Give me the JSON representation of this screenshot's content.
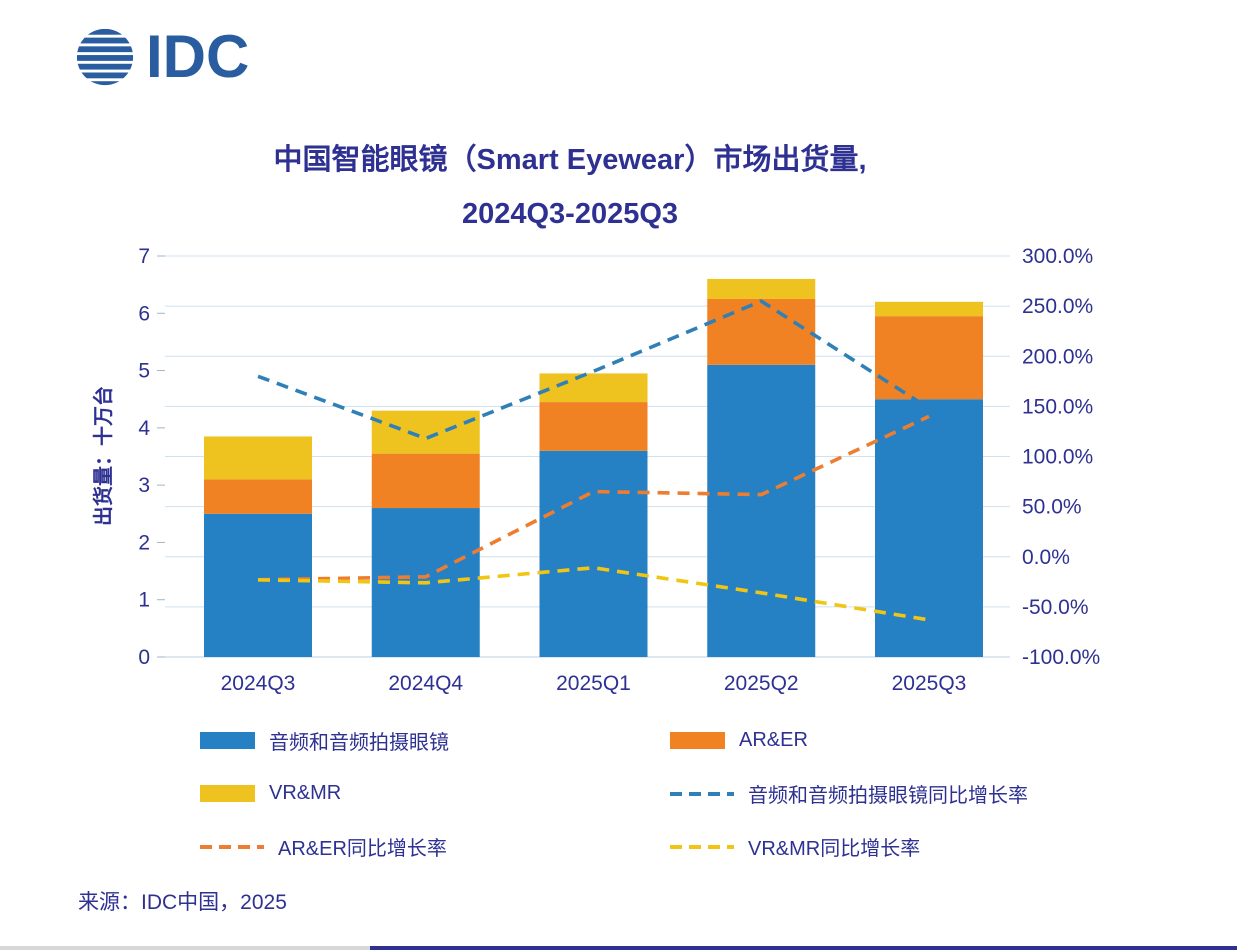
{
  "logo": {
    "text": "IDC"
  },
  "title": {
    "line1": "中国智能眼镜（Smart Eyewear）市场出货量,",
    "line2": "2024Q3-2025Q3"
  },
  "source": "来源：IDC中国，2025",
  "colors": {
    "bar_blue": "#2581c4",
    "bar_orange": "#f08223",
    "bar_yellow": "#eec21f",
    "line_blue": "#3080b8",
    "line_orange": "#ed7d31",
    "line_yellow": "#f0c513",
    "text_navy": "#2e3192",
    "grid": "#cfe0ef",
    "baseline": "#b9cfe3"
  },
  "chart_data": {
    "type": "bar",
    "subtype": "stacked-bars-with-growth-lines",
    "categories": [
      "2024Q3",
      "2024Q4",
      "2025Q1",
      "2025Q2",
      "2025Q3"
    ],
    "bar_series": [
      {
        "name": "音频和音频拍摄眼镜",
        "color": "#2581c4",
        "values": [
          2.5,
          2.6,
          3.6,
          5.1,
          4.5
        ]
      },
      {
        "name": "AR&ER",
        "color": "#f08223",
        "values": [
          0.6,
          0.95,
          0.85,
          1.15,
          1.45
        ]
      },
      {
        "name": "VR&MR",
        "color": "#eec21f",
        "values": [
          0.75,
          0.75,
          0.5,
          0.35,
          0.25
        ]
      }
    ],
    "line_series": [
      {
        "name": "音频和音频拍摄眼镜同比增长率",
        "color": "#3080b8",
        "values": [
          180,
          118,
          185,
          255,
          148
        ]
      },
      {
        "name": "AR&ER同比增长率",
        "color": "#ed7d31",
        "values": [
          -23,
          -20,
          65,
          62,
          140
        ]
      },
      {
        "name": "VR&MR同比增长率",
        "color": "#f0c513",
        "values": [
          -23,
          -26,
          -11,
          -36,
          -63
        ]
      }
    ],
    "left_axis": {
      "title": "出货量：十万台",
      "min": 0,
      "max": 7,
      "step": 1,
      "tick_labels": [
        "7",
        "6",
        "5",
        "4",
        "3",
        "2",
        "1",
        "0"
      ]
    },
    "right_axis": {
      "min": -100,
      "max": 300,
      "step": 50,
      "suffix": "%",
      "tick_labels": [
        "300.0%",
        "250.0%",
        "200.0%",
        "150.0%",
        "100.0%",
        "50.0%",
        "0.0%",
        "-50.0%",
        "-100.0%"
      ]
    },
    "grid": "horizontal",
    "legend_position": "bottom"
  },
  "legend": {
    "items": [
      {
        "label": "音频和音频拍摄眼镜",
        "swatch": "solid",
        "color": "#2581c4"
      },
      {
        "label": "AR&ER",
        "swatch": "solid",
        "color": "#f08223"
      },
      {
        "label": "VR&MR",
        "swatch": "solid",
        "color": "#eec21f"
      },
      {
        "label": "音频和音频拍摄眼镜同比增长率",
        "swatch": "dashed",
        "color": "#3080b8"
      },
      {
        "label": "AR&ER同比增长率",
        "swatch": "dashed",
        "color": "#ed7d31"
      },
      {
        "label": "VR&MR同比增长率",
        "swatch": "dashed",
        "color": "#f0c513"
      }
    ]
  }
}
